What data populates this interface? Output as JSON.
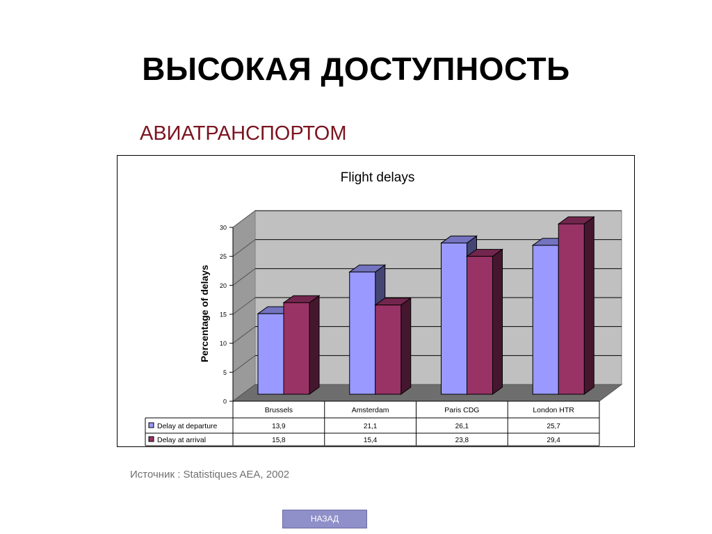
{
  "slide": {
    "title": "ВЫСОКАЯ ДОСТУПНОСТЬ",
    "subtitle": "АВИАТРАНСПОРТОМ",
    "source": "Источник  : Statistiques AEA, 2002",
    "back_label": "НАЗАД"
  },
  "chart_data": {
    "type": "bar",
    "title": "Flight delays",
    "xlabel": "",
    "ylabel": "Percentage of delays",
    "ylim": [
      0,
      30
    ],
    "yticks": [
      0,
      5,
      10,
      15,
      20,
      25,
      30
    ],
    "grid": true,
    "legend": "data-table",
    "categories": [
      "Brussels",
      "Amsterdam",
      "Paris CDG",
      "London HTR"
    ],
    "series": [
      {
        "name": "Delay at departure",
        "values": [
          13.9,
          21.1,
          26.1,
          25.7
        ],
        "labels": [
          "13,9",
          "21,1",
          "26,1",
          "25,7"
        ],
        "color": "#9999ff"
      },
      {
        "name": "Delay at arrival",
        "values": [
          15.8,
          15.4,
          23.8,
          29.4
        ],
        "labels": [
          "15,8",
          "15,4",
          "23,8",
          "29,4"
        ],
        "color": "#993366"
      }
    ]
  }
}
